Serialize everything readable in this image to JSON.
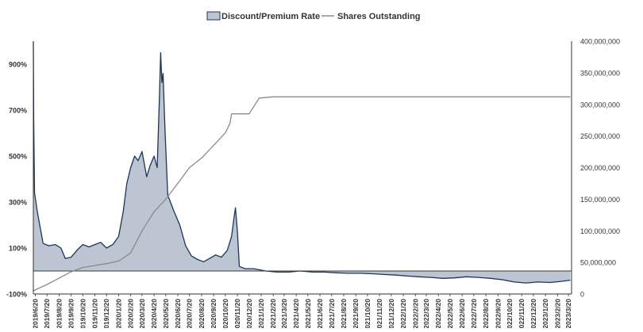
{
  "chart_data": {
    "type": "area",
    "legend": {
      "placement": "top-center",
      "entries": [
        {
          "key": "rate",
          "label": "Discount/Premium Rate",
          "marker": "area"
        },
        {
          "key": "shares",
          "label": "Shares Outstanding",
          "marker": "line"
        }
      ]
    },
    "colors": {
      "area_fill": "#bcc5d1",
      "area_line": "#1d3557",
      "shares_line": "#8a8a8a",
      "axis": "#333333",
      "tick_text": "#333333"
    },
    "grid": false,
    "y_left": {
      "range": [
        -100,
        1000
      ],
      "ticks": [
        -100,
        100,
        300,
        500,
        700,
        900
      ],
      "tick_labels": [
        "-100%",
        "100%",
        "300%",
        "500%",
        "700%",
        "900%"
      ]
    },
    "y_right": {
      "range": [
        0,
        400000000
      ],
      "ticks": [
        0,
        50000000,
        100000000,
        150000000,
        200000000,
        250000000,
        300000000,
        350000000,
        400000000
      ],
      "tick_labels": [
        "0",
        "50,000,000",
        "100,000,000",
        "150,000,000",
        "200,000,000",
        "250,000,000",
        "300,000,000",
        "350,000,000",
        "400,000,000"
      ]
    },
    "x_ticks": [
      "2019/6/20",
      "2019/7/20",
      "2019/8/20",
      "2019/9/20",
      "2019/10/20",
      "2019/11/20",
      "2019/12/20",
      "2020/1/20",
      "2020/2/20",
      "2020/3/20",
      "2020/4/20",
      "2020/5/20",
      "2020/6/20",
      "2020/7/20",
      "2020/8/20",
      "2020/9/20",
      "2020/10/20",
      "2020/11/20",
      "2020/12/20",
      "2021/1/20",
      "2021/2/20",
      "2021/3/20",
      "2021/4/20",
      "2021/5/20",
      "2021/6/20",
      "2021/7/20",
      "2021/8/20",
      "2021/9/20",
      "2021/10/20",
      "2021/11/20",
      "2021/12/20",
      "2022/1/20",
      "2022/2/20",
      "2022/3/20",
      "2022/4/20",
      "2022/5/20",
      "2022/6/20",
      "2022/7/20",
      "2022/8/20",
      "2022/9/20",
      "2022/10/20",
      "2022/11/20",
      "2022/12/20",
      "2023/1/20",
      "2023/2/20",
      "2023/3/20"
    ],
    "series": [
      {
        "key": "rate",
        "name": "Discount/Premium Rate",
        "axis": "left",
        "points": [
          [
            "2019/6/15",
            1000
          ],
          [
            "2019/6/16",
            650
          ],
          [
            "2019/6/18",
            340
          ],
          [
            "2019/6/25",
            260
          ],
          [
            "2019/7/10",
            120
          ],
          [
            "2019/7/25",
            110
          ],
          [
            "2019/8/10",
            115
          ],
          [
            "2019/8/25",
            100
          ],
          [
            "2019/9/5",
            55
          ],
          [
            "2019/9/20",
            60
          ],
          [
            "2019/10/5",
            90
          ],
          [
            "2019/10/20",
            115
          ],
          [
            "2019/11/5",
            105
          ],
          [
            "2019/11/20",
            115
          ],
          [
            "2019/12/5",
            125
          ],
          [
            "2019/12/20",
            100
          ],
          [
            "2020/1/5",
            115
          ],
          [
            "2020/1/20",
            150
          ],
          [
            "2020/2/1",
            260
          ],
          [
            "2020/2/10",
            380
          ],
          [
            "2020/2/20",
            450
          ],
          [
            "2020/3/1",
            500
          ],
          [
            "2020/3/10",
            480
          ],
          [
            "2020/3/20",
            520
          ],
          [
            "2020/4/1",
            410
          ],
          [
            "2020/4/10",
            460
          ],
          [
            "2020/4/20",
            500
          ],
          [
            "2020/4/28",
            450
          ],
          [
            "2020/5/3",
            720
          ],
          [
            "2020/5/7",
            950
          ],
          [
            "2020/5/10",
            820
          ],
          [
            "2020/5/13",
            860
          ],
          [
            "2020/5/18",
            620
          ],
          [
            "2020/5/25",
            330
          ],
          [
            "2020/6/1",
            300
          ],
          [
            "2020/6/10",
            260
          ],
          [
            "2020/6/25",
            200
          ],
          [
            "2020/7/10",
            110
          ],
          [
            "2020/7/25",
            65
          ],
          [
            "2020/8/10",
            50
          ],
          [
            "2020/8/25",
            40
          ],
          [
            "2020/9/10",
            55
          ],
          [
            "2020/9/25",
            70
          ],
          [
            "2020/10/10",
            60
          ],
          [
            "2020/10/25",
            90
          ],
          [
            "2020/11/5",
            150
          ],
          [
            "2020/11/12",
            240
          ],
          [
            "2020/11/15",
            275
          ],
          [
            "2020/11/20",
            170
          ],
          [
            "2020/11/25",
            20
          ],
          [
            "2020/12/10",
            10
          ],
          [
            "2021/1/1",
            10
          ],
          [
            "2021/2/1",
            0
          ],
          [
            "2021/3/1",
            -5
          ],
          [
            "2021/4/1",
            -5
          ],
          [
            "2021/5/1",
            0
          ],
          [
            "2021/6/1",
            -5
          ],
          [
            "2021/7/1",
            -5
          ],
          [
            "2021/8/1",
            -8
          ],
          [
            "2021/9/1",
            -10
          ],
          [
            "2021/10/1",
            -10
          ],
          [
            "2021/11/1",
            -12
          ],
          [
            "2021/12/1",
            -15
          ],
          [
            "2022/1/1",
            -18
          ],
          [
            "2022/2/1",
            -22
          ],
          [
            "2022/3/1",
            -25
          ],
          [
            "2022/4/1",
            -28
          ],
          [
            "2022/5/1",
            -32
          ],
          [
            "2022/6/1",
            -30
          ],
          [
            "2022/7/1",
            -25
          ],
          [
            "2022/8/1",
            -28
          ],
          [
            "2022/9/1",
            -32
          ],
          [
            "2022/10/1",
            -38
          ],
          [
            "2022/11/1",
            -48
          ],
          [
            "2022/12/1",
            -52
          ],
          [
            "2023/1/1",
            -48
          ],
          [
            "2023/2/1",
            -50
          ],
          [
            "2023/3/1",
            -45
          ],
          [
            "2023/3/25",
            -40
          ]
        ]
      },
      {
        "key": "shares",
        "name": "Shares Outstanding",
        "axis": "right",
        "points": [
          [
            "2019/6/15",
            5000000
          ],
          [
            "2019/7/20",
            15000000
          ],
          [
            "2019/8/20",
            25000000
          ],
          [
            "2019/9/20",
            35000000
          ],
          [
            "2019/10/20",
            42000000
          ],
          [
            "2019/11/20",
            45000000
          ],
          [
            "2019/12/20",
            48000000
          ],
          [
            "2020/1/20",
            52000000
          ],
          [
            "2020/2/20",
            65000000
          ],
          [
            "2020/3/20",
            100000000
          ],
          [
            "2020/4/20",
            130000000
          ],
          [
            "2020/5/20",
            150000000
          ],
          [
            "2020/6/20",
            175000000
          ],
          [
            "2020/7/20",
            200000000
          ],
          [
            "2020/8/20",
            215000000
          ],
          [
            "2020/9/20",
            235000000
          ],
          [
            "2020/10/20",
            255000000
          ],
          [
            "2020/11/1",
            270000000
          ],
          [
            "2020/11/5",
            285000000
          ],
          [
            "2020/12/20",
            285000000
          ],
          [
            "2021/1/15",
            310000000
          ],
          [
            "2021/2/20",
            312000000
          ],
          [
            "2023/3/25",
            312000000
          ]
        ]
      }
    ]
  }
}
